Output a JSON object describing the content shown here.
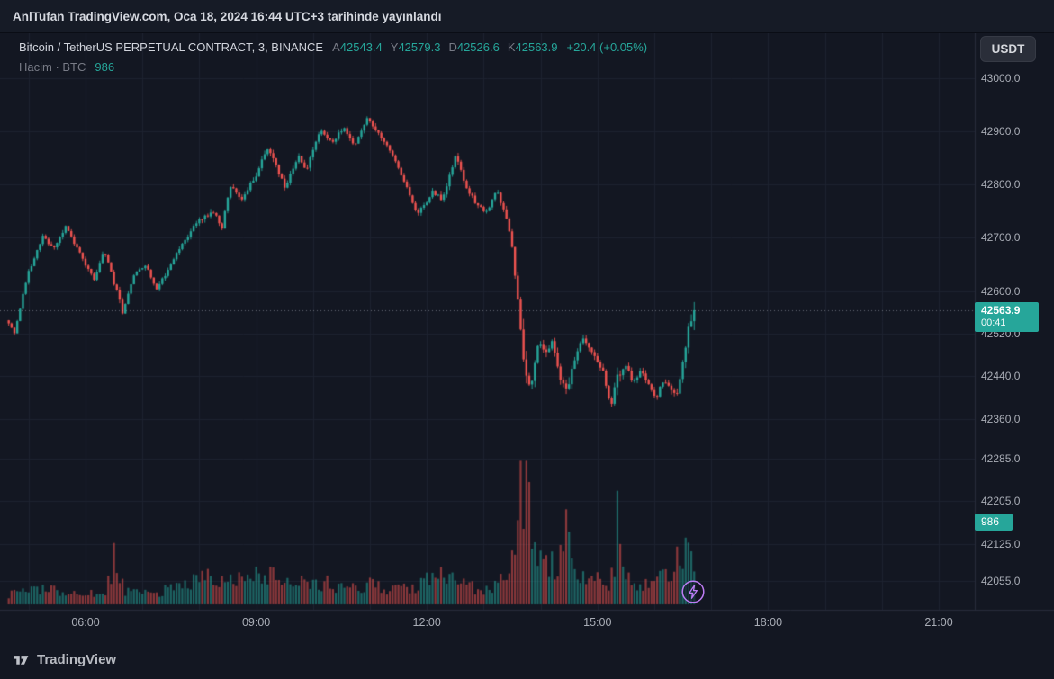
{
  "topbar": {
    "text": "AnlTufan TradingView.com, Oca 18, 2024 16:44 UTC+3 tarihinde yayınlandı"
  },
  "legend": {
    "symbol_title": "Bitcoin / TetherUS PERPETUAL CONTRACT, 3, BINANCE",
    "ohlc": [
      {
        "label": "A",
        "value": "42543.4"
      },
      {
        "label": "Y",
        "value": "42579.3"
      },
      {
        "label": "D",
        "value": "42526.6"
      },
      {
        "label": "K",
        "value": "42563.9"
      }
    ],
    "change": "+20.4 (+0.05%)",
    "volume_label": "Hacim · BTC",
    "volume_value": "986"
  },
  "currency_button": "USDT",
  "price_axis": {
    "last_price_label": "42563.9",
    "countdown": "00:41",
    "volume_badge": "986"
  },
  "footer": {
    "brand": "TradingView"
  },
  "colors": {
    "background": "#131722",
    "up": "#26a69a",
    "down": "#ef5350",
    "volume_up": "rgba(38,166,154,0.55)",
    "volume_down": "rgba(239,83,80,0.55)",
    "label_bg": "#26a69a",
    "grid": "#1d2230",
    "separator": "#272c3a",
    "dotted_line": "rgba(168,172,181,0.55)",
    "lightning": "#bd7cf4",
    "text_primary": "#d1d4dc",
    "text_muted": "#787b86",
    "axis_text": "#a9adb6"
  },
  "chart_data": {
    "type": "candlestick",
    "title": "Bitcoin / TetherUS PERPETUAL CONTRACT, 3, BINANCE",
    "exchange": "BINANCE",
    "quote_currency": "USDT",
    "interval_minutes": 3,
    "last_price": 42563.9,
    "change_abs": 20.4,
    "change_pct": 0.05,
    "ohlc_current": {
      "open": 42543.4,
      "high": 42579.3,
      "low": 42526.6,
      "close": 42563.9
    },
    "last_bar_volume_btc": 986,
    "bar_countdown": "00:41",
    "x_unit": "hour_of_day (UTC+3)",
    "time_ticks": [
      [
        6,
        "06:00"
      ],
      [
        9,
        "09:00"
      ],
      [
        12,
        "12:00"
      ],
      [
        15,
        "15:00"
      ],
      [
        18,
        "18:00"
      ],
      [
        21,
        "21:00"
      ]
    ],
    "visible_time_range": [
      4.5,
      21.65
    ],
    "candles_time_range": [
      4.65,
      16.71
    ],
    "price_ticks": [
      43000.0,
      42900.0,
      42800.0,
      42700.0,
      42600.0,
      42520.0,
      42440.0,
      42360.0,
      42285.0,
      42205.0,
      42125.0,
      42055.0
    ],
    "visible_price_range": [
      42011,
      43012
    ],
    "session_high_est": 42930,
    "session_low_est": 42360,
    "price_path_estimate": [
      [
        4.65,
        42545
      ],
      [
        4.78,
        42522
      ],
      [
        5.0,
        42630
      ],
      [
        5.29,
        42705
      ],
      [
        5.45,
        42678
      ],
      [
        5.68,
        42722
      ],
      [
        5.85,
        42686
      ],
      [
        6.0,
        42655
      ],
      [
        6.18,
        42622
      ],
      [
        6.35,
        42678
      ],
      [
        6.55,
        42608
      ],
      [
        6.68,
        42558
      ],
      [
        6.9,
        42638
      ],
      [
        7.1,
        42648
      ],
      [
        7.27,
        42602
      ],
      [
        7.5,
        42645
      ],
      [
        7.66,
        42678
      ],
      [
        8.01,
        42735
      ],
      [
        8.29,
        42748
      ],
      [
        8.42,
        42715
      ],
      [
        8.56,
        42798
      ],
      [
        8.77,
        42775
      ],
      [
        9.0,
        42812
      ],
      [
        9.24,
        42872
      ],
      [
        9.53,
        42795
      ],
      [
        9.77,
        42855
      ],
      [
        9.9,
        42828
      ],
      [
        10.16,
        42902
      ],
      [
        10.35,
        42878
      ],
      [
        10.56,
        42908
      ],
      [
        10.75,
        42872
      ],
      [
        10.98,
        42928
      ],
      [
        11.22,
        42888
      ],
      [
        11.41,
        42860
      ],
      [
        11.62,
        42808
      ],
      [
        11.85,
        42745
      ],
      [
        12.0,
        42762
      ],
      [
        12.14,
        42788
      ],
      [
        12.3,
        42770
      ],
      [
        12.53,
        42856
      ],
      [
        12.72,
        42795
      ],
      [
        12.92,
        42760
      ],
      [
        13.09,
        42748
      ],
      [
        13.25,
        42788
      ],
      [
        13.39,
        42750
      ],
      [
        13.52,
        42688
      ],
      [
        13.64,
        42560
      ],
      [
        13.77,
        42432
      ],
      [
        13.86,
        42422
      ],
      [
        13.99,
        42505
      ],
      [
        14.12,
        42480
      ],
      [
        14.23,
        42505
      ],
      [
        14.34,
        42450
      ],
      [
        14.47,
        42408
      ],
      [
        14.59,
        42458
      ],
      [
        14.75,
        42510
      ],
      [
        14.88,
        42494
      ],
      [
        15.0,
        42470
      ],
      [
        15.13,
        42446
      ],
      [
        15.26,
        42385
      ],
      [
        15.38,
        42440
      ],
      [
        15.53,
        42460
      ],
      [
        15.65,
        42424
      ],
      [
        15.78,
        42448
      ],
      [
        15.92,
        42428
      ],
      [
        16.05,
        42396
      ],
      [
        16.17,
        42432
      ],
      [
        16.3,
        42416
      ],
      [
        16.41,
        42398
      ],
      [
        16.52,
        42465
      ],
      [
        16.62,
        42528
      ],
      [
        16.71,
        42564
      ]
    ],
    "volume_profile_estimate": [
      [
        4.65,
        8
      ],
      [
        5.3,
        12
      ],
      [
        6.0,
        9
      ],
      [
        6.35,
        10
      ],
      [
        6.52,
        38
      ],
      [
        6.7,
        10
      ],
      [
        7.2,
        9
      ],
      [
        7.6,
        13
      ],
      [
        8.1,
        22
      ],
      [
        8.4,
        16
      ],
      [
        8.7,
        20
      ],
      [
        9.0,
        26
      ],
      [
        9.3,
        22
      ],
      [
        9.6,
        14
      ],
      [
        9.9,
        18
      ],
      [
        10.3,
        16
      ],
      [
        10.7,
        13
      ],
      [
        11.0,
        15
      ],
      [
        11.4,
        12
      ],
      [
        11.8,
        14
      ],
      [
        12.0,
        18
      ],
      [
        12.3,
        26
      ],
      [
        12.6,
        16
      ],
      [
        12.9,
        12
      ],
      [
        13.2,
        14
      ],
      [
        13.45,
        22
      ],
      [
        13.58,
        52
      ],
      [
        13.66,
        100
      ],
      [
        13.74,
        88
      ],
      [
        13.84,
        62
      ],
      [
        13.95,
        48
      ],
      [
        14.1,
        36
      ],
      [
        14.25,
        28
      ],
      [
        14.4,
        40
      ],
      [
        14.47,
        66
      ],
      [
        14.6,
        30
      ],
      [
        14.8,
        22
      ],
      [
        15.0,
        24
      ],
      [
        15.2,
        18
      ],
      [
        15.3,
        30
      ],
      [
        15.37,
        98
      ],
      [
        15.45,
        26
      ],
      [
        15.6,
        20
      ],
      [
        15.75,
        16
      ],
      [
        15.9,
        20
      ],
      [
        16.05,
        26
      ],
      [
        16.2,
        22
      ],
      [
        16.35,
        28
      ],
      [
        16.5,
        44
      ],
      [
        16.6,
        58
      ],
      [
        16.71,
        42
      ]
    ],
    "seed": 9
  }
}
